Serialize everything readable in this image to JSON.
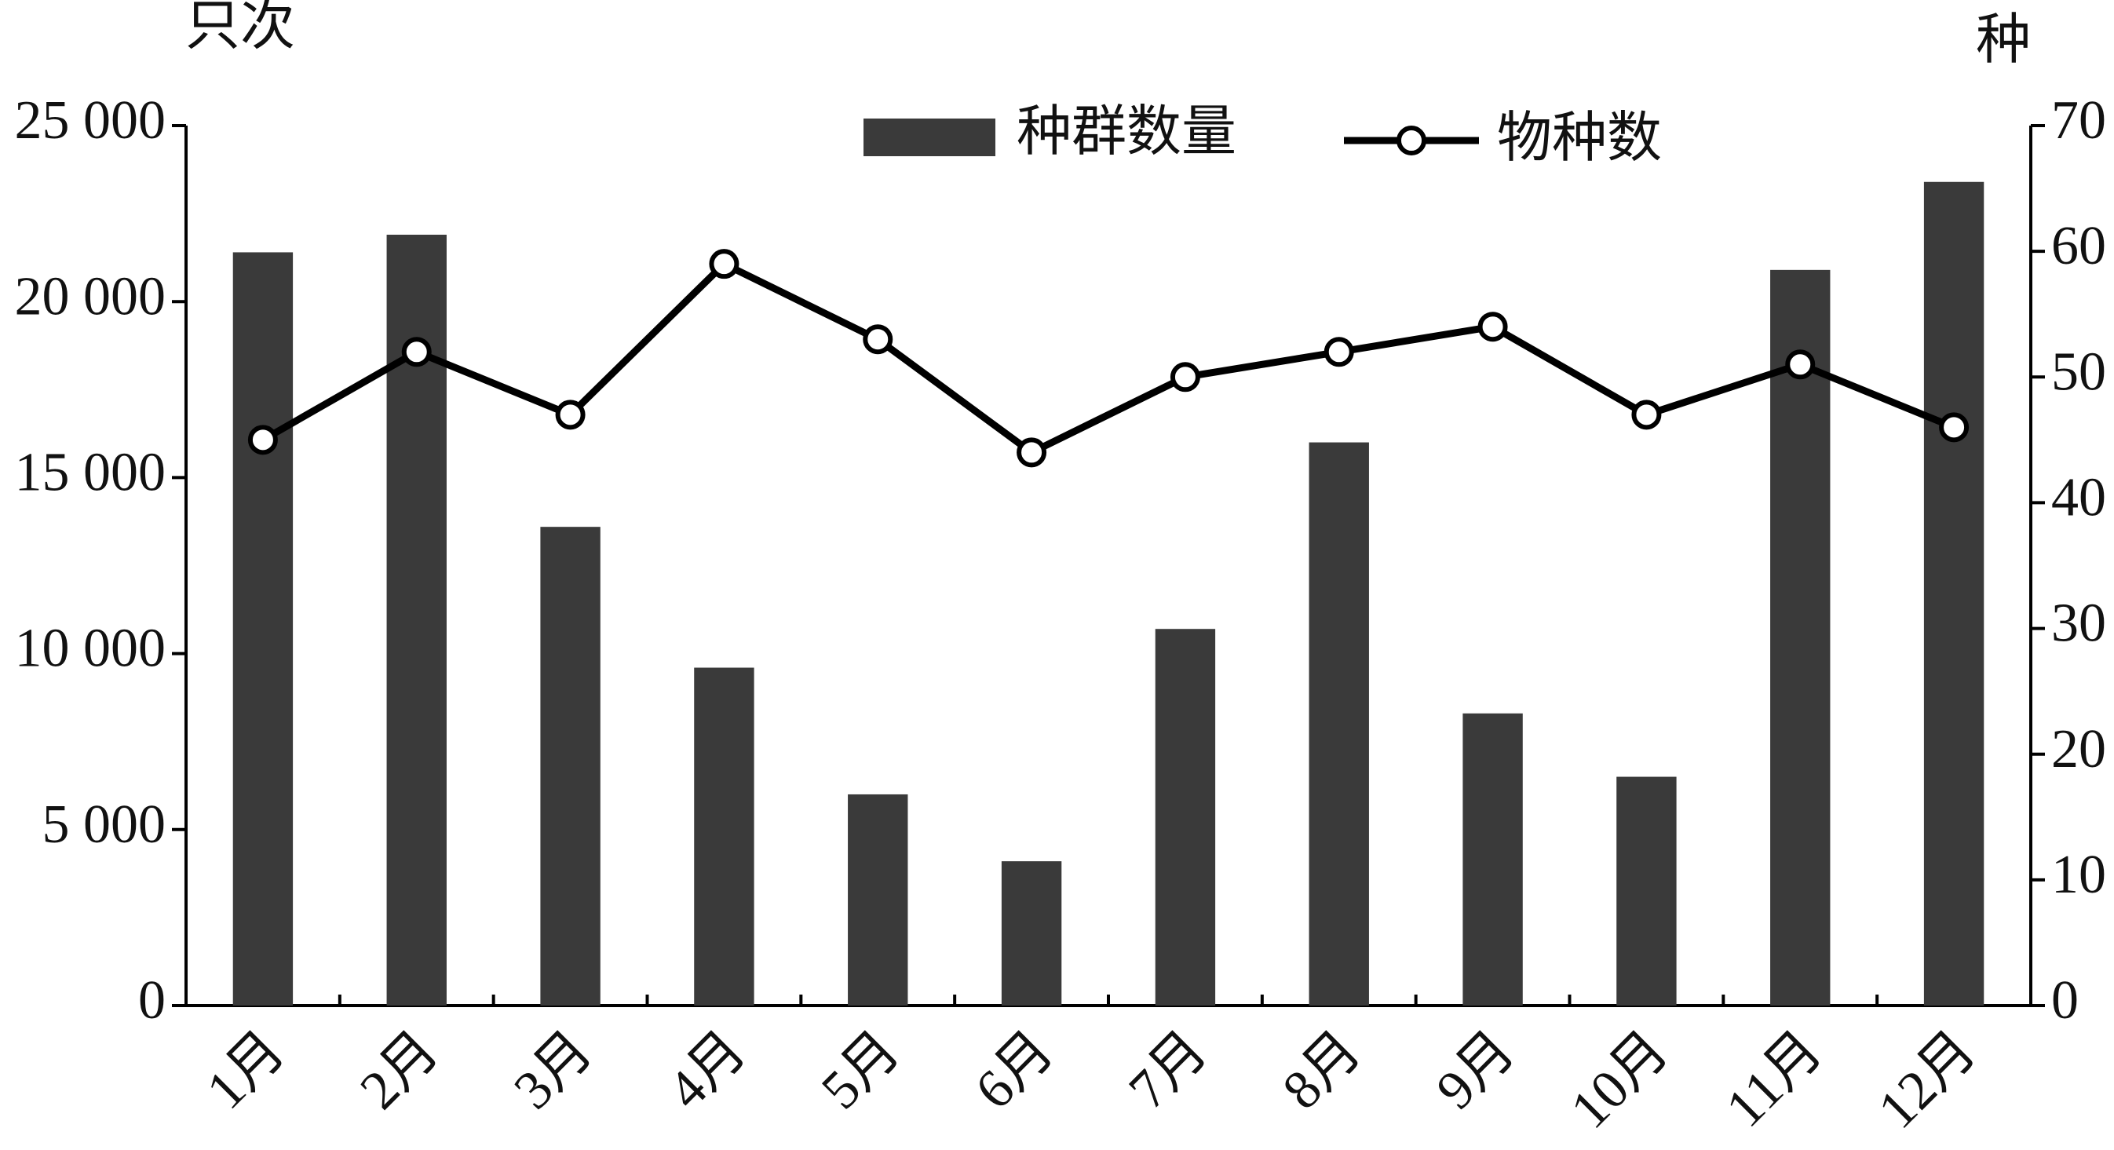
{
  "chart_data": {
    "type": "bar_line",
    "y_unit_label": "只次",
    "y2_unit_label": "种",
    "categories": [
      "1月",
      "2月",
      "3月",
      "4月",
      "5月",
      "6月",
      "7月",
      "8月",
      "9月",
      "10月",
      "11月",
      "12月"
    ],
    "series": [
      {
        "name": "种群数量",
        "type": "bar",
        "color": "#3a3a3a",
        "values": [
          21400,
          21900,
          13600,
          9600,
          6000,
          4100,
          10700,
          16000,
          8300,
          6500,
          20900,
          23400
        ]
      },
      {
        "name": "物种数",
        "type": "line",
        "axis": "y2",
        "color": "#000000",
        "values": [
          45,
          52,
          47,
          59,
          53,
          44,
          50,
          52,
          54,
          47,
          51,
          46
        ]
      }
    ],
    "ylim": [
      0,
      25000
    ],
    "yticks": [
      0,
      {
        "value": 5000,
        "label": "5 000"
      },
      {
        "value": 10000,
        "label": "10 000"
      },
      {
        "value": 15000,
        "label": "15 000"
      },
      {
        "value": 20000,
        "label": "20 000"
      },
      {
        "value": 25000,
        "label": "25 000"
      }
    ],
    "y2lim": [
      0,
      70
    ],
    "y2ticks": [
      0,
      10,
      20,
      30,
      40,
      50,
      60,
      70
    ],
    "legend": "top"
  }
}
